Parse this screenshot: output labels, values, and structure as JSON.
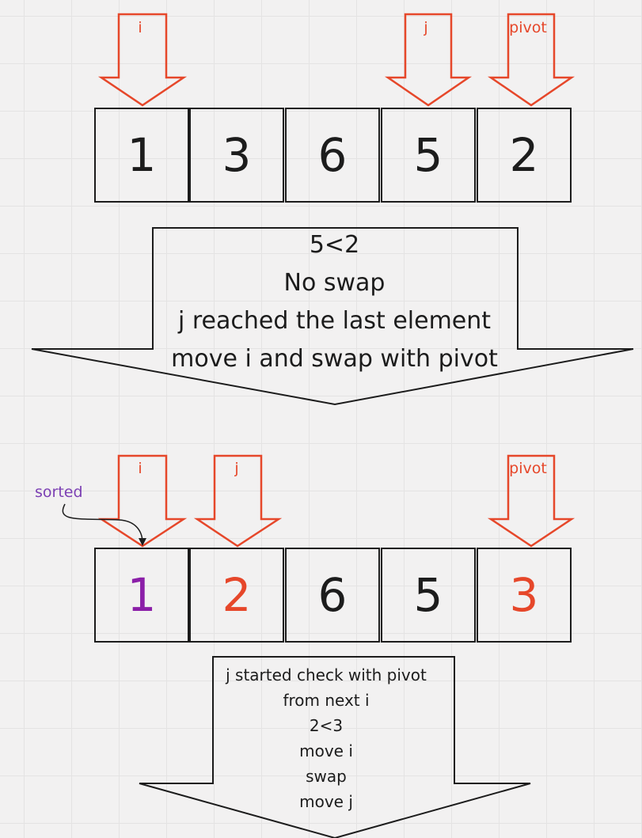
{
  "step1": {
    "pointers": [
      {
        "id": "i",
        "label": "i"
      },
      {
        "id": "j",
        "label": "j"
      },
      {
        "id": "pivot",
        "label": "pivot"
      }
    ],
    "cells": [
      {
        "value": "1",
        "color": "#1c1c1c"
      },
      {
        "value": "3",
        "color": "#1c1c1c"
      },
      {
        "value": "6",
        "color": "#1c1c1c"
      },
      {
        "value": "5",
        "color": "#1c1c1c"
      },
      {
        "value": "2",
        "color": "#1c1c1c"
      }
    ],
    "note_lines": [
      "5<2",
      "No swap",
      "j reached the last element",
      "move i and swap with pivot"
    ]
  },
  "step2": {
    "pointers": [
      {
        "id": "i",
        "label": "i"
      },
      {
        "id": "j",
        "label": "j"
      },
      {
        "id": "pivot",
        "label": "pivot"
      }
    ],
    "sorted_label": "sorted",
    "cells": [
      {
        "value": "1",
        "color": "#8b1fa8"
      },
      {
        "value": "2",
        "color": "#e6472a"
      },
      {
        "value": "6",
        "color": "#1c1c1c"
      },
      {
        "value": "5",
        "color": "#1c1c1c"
      },
      {
        "value": "3",
        "color": "#e6472a"
      }
    ],
    "note_lines": [
      "j started check with pivot",
      "from next i",
      "2<3",
      "move i",
      "swap",
      "move j"
    ]
  },
  "colors": {
    "pointer_arrow": "#e6472a",
    "outline": "#1c1c1c",
    "sorted": "#7b3fb3",
    "background": "#f2f1f1"
  }
}
